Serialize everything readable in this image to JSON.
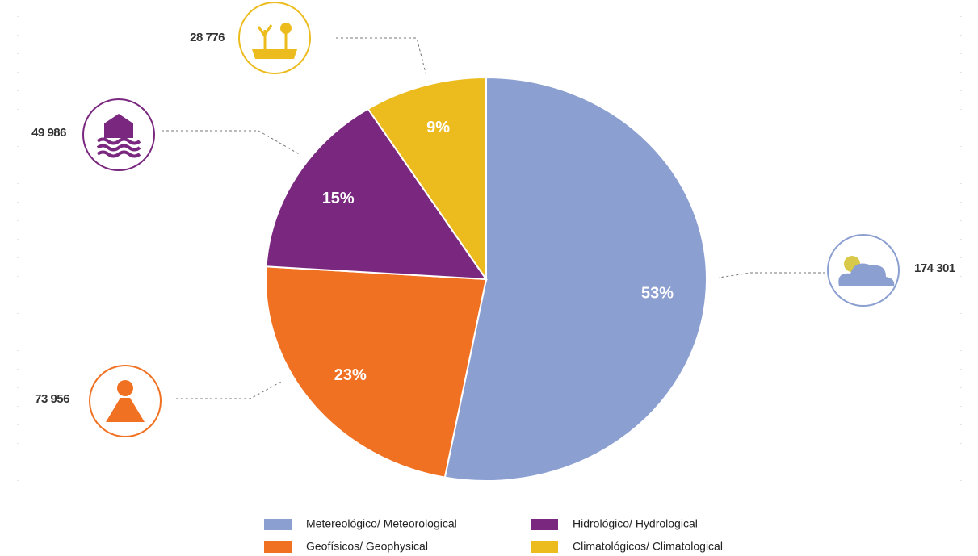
{
  "chart_data": {
    "type": "pie",
    "categories": [
      "Metereológico/ Meteorological",
      "Geofísicos/ Geophysical",
      "Hidrológico/ Hydrological",
      "Climatológicos/ Climatological"
    ],
    "values": [
      53,
      23,
      15,
      9
    ],
    "value_labels": [
      "53%",
      "23%",
      "15%",
      "9%"
    ],
    "count_labels": [
      "174 301",
      "73 956",
      "49 986",
      "28 776"
    ],
    "colors": [
      "#8c9fd1",
      "#f07122",
      "#7a287f",
      "#ecbc1f"
    ]
  }
}
